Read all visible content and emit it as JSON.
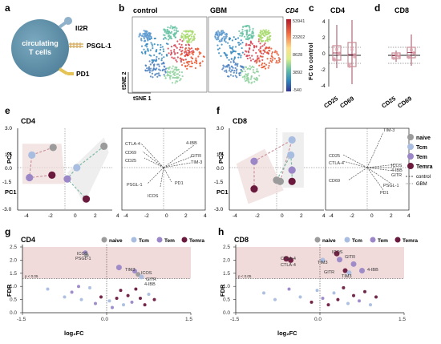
{
  "panels": {
    "a": {
      "letter": "a",
      "cell_label_1": "circulating",
      "cell_label_2": "T cells",
      "receptors": [
        "Il2R",
        "PSGL-1",
        "PD1"
      ]
    },
    "b": {
      "letter": "b",
      "left_title": "control",
      "right_title": "GBM",
      "xlabel": "tSNE 1",
      "ylabel": "tSNE 2",
      "colorbar_title": "CD4",
      "colorbar_ticks": [
        "53941",
        "23202",
        "8628",
        "3892",
        "-540"
      ]
    },
    "c": {
      "letter": "c",
      "title": "CD4",
      "ylabel": "FC to control",
      "categories": [
        "CD25",
        "CD69"
      ],
      "yticks": [
        "4",
        "2",
        "0",
        "-2",
        "-4"
      ]
    },
    "d": {
      "letter": "d",
      "title": "CD8",
      "categories": [
        "CD25",
        "CD69"
      ]
    },
    "e": {
      "letter": "e",
      "title": "CD4",
      "xlabel": "PC1",
      "ylabel": "PC2",
      "xticks": [
        "-4",
        "-2",
        "0",
        "2",
        "4"
      ],
      "yticks": [
        "3.0",
        "1.5",
        "0.0",
        "-1.5",
        "-3.0"
      ],
      "loadings": [
        "CTLA-4",
        "CD69",
        "CD25",
        "4-IBB",
        "GITR",
        "TIM-3",
        "PD1",
        "PSGL-1",
        "ICOS"
      ]
    },
    "f": {
      "letter": "f",
      "title": "CD8",
      "xlabel": "PC1",
      "ylabel": "PC2",
      "xticks": [
        "-4",
        "-2",
        "0",
        "2",
        "4"
      ],
      "yticks": [
        "3.0",
        "1.5",
        "0.0",
        "-1.5",
        "-3.0"
      ],
      "loadings": [
        "TIM-3",
        "CD25",
        "CTLA-4",
        "ICOS",
        "4-IBB",
        "GITR",
        "CD69",
        "PSGL-1",
        "PD1"
      ]
    },
    "g": {
      "letter": "g",
      "title": "CD4",
      "xlabel": "log₂FC",
      "ylabel": "FDR",
      "xticks": [
        "-1.5",
        "0.0",
        "1.5"
      ],
      "yticks": [
        "2.5",
        "2.0",
        "1.5",
        "1.0",
        "0.5",
        "0.0"
      ],
      "threshold": "p < 0.05",
      "labels": [
        "ICOS",
        "PSGL-1",
        "TIM3",
        "ICOS",
        "GITR",
        "4-IBB"
      ]
    },
    "h": {
      "letter": "h",
      "title": "CD8",
      "xlabel": "log₂FC",
      "ylabel": "FDR",
      "xticks": [
        "-1.5",
        "0.0",
        "1.5"
      ],
      "yticks": [
        "2.5",
        "2.0",
        "1.5",
        "1.0",
        "0.5",
        "0.0"
      ],
      "threshold": "p < 0.05",
      "labels": [
        "ICOS",
        "CTLA-4",
        "CTLA-4",
        "TIM3",
        "GITR",
        "4-IBB",
        "GITR",
        "TIM3"
      ]
    }
  },
  "legend": {
    "subsets": [
      "naive",
      "Tcm",
      "Tem",
      "Temra"
    ],
    "lines": [
      "control",
      "GBM"
    ]
  },
  "colors": {
    "naive": "#9b9b9b",
    "Tcm": "#a9bde0",
    "Tem": "#9b87c8",
    "Temra": "#6b1a3e",
    "cell": "#5f8fa8",
    "highlight": "#f0dada",
    "box": "#c98b95"
  },
  "chart_data": [
    {
      "type": "scatter",
      "panel": "e",
      "title": "CD4",
      "xlabel": "PC1",
      "ylabel": "PC2",
      "xlim": [
        -4,
        4
      ],
      "ylim": [
        -3,
        3
      ],
      "series": [
        {
          "name": "naive",
          "x": [
            -1.0,
            3.3
          ],
          "y": [
            1.6,
            1.7
          ]
        },
        {
          "name": "Tcm",
          "x": [
            -2.8,
            1.0
          ],
          "y": [
            1.0,
            0.0
          ]
        },
        {
          "name": "Tem",
          "x": [
            -3.0,
            0.2
          ],
          "y": [
            -0.8,
            -0.9
          ]
        },
        {
          "name": "Temra",
          "x": [
            -1.1,
            1.8
          ],
          "y": [
            -0.6,
            -2.5
          ]
        }
      ]
    },
    {
      "type": "scatter",
      "panel": "f",
      "title": "CD8",
      "xlabel": "PC1",
      "ylabel": "PC2",
      "xlim": [
        -4,
        4
      ],
      "ylim": [
        -3,
        3
      ],
      "series": [
        {
          "name": "naive",
          "x": [
            0.3,
            0.0
          ],
          "y": [
            -1.1,
            -1.0
          ]
        },
        {
          "name": "Tcm",
          "x": [
            1.3,
            1.2
          ],
          "y": [
            2.2,
            1.0
          ]
        },
        {
          "name": "Tem",
          "x": [
            -1.9,
            1.3
          ],
          "y": [
            0.5,
            -0.2
          ]
        },
        {
          "name": "Temra",
          "x": [
            -1.9,
            1.3
          ],
          "y": [
            -1.7,
            -1.1
          ]
        }
      ]
    },
    {
      "type": "scatter",
      "panel": "g",
      "title": "CD4",
      "xlabel": "log₂FC",
      "ylabel": "FDR",
      "xlim": [
        -1.5,
        1.5
      ],
      "ylim": [
        0,
        2.5
      ],
      "threshold": 1.3,
      "points": [
        {
          "x": -0.38,
          "y": 2.28,
          "c": "Tem",
          "r": 3
        },
        {
          "x": -0.36,
          "y": 2.18,
          "c": "naive",
          "r": 3
        },
        {
          "x": 0.22,
          "y": 1.72,
          "c": "Tem",
          "r": 3.5
        },
        {
          "x": 0.5,
          "y": 1.58,
          "c": "Tem",
          "r": 3
        },
        {
          "x": 0.56,
          "y": 1.46,
          "c": "naive",
          "r": 3
        },
        {
          "x": 0.62,
          "y": 1.36,
          "c": "Tcm",
          "r": 3
        },
        {
          "x": -1.05,
          "y": 0.9,
          "c": "Tcm",
          "r": 2
        },
        {
          "x": -0.75,
          "y": 0.6,
          "c": "Tcm",
          "r": 2
        },
        {
          "x": -0.62,
          "y": 0.78,
          "c": "Tem",
          "r": 2
        },
        {
          "x": -0.45,
          "y": 0.5,
          "c": "Tcm",
          "r": 2
        },
        {
          "x": -0.3,
          "y": 0.95,
          "c": "Tcm",
          "r": 2
        },
        {
          "x": -0.2,
          "y": 0.35,
          "c": "Tem",
          "r": 2
        },
        {
          "x": -0.1,
          "y": 0.6,
          "c": "Temra",
          "r": 2
        },
        {
          "x": 0.05,
          "y": 0.45,
          "c": "Tcm",
          "r": 2
        },
        {
          "x": 0.1,
          "y": 0.2,
          "c": "Tem",
          "r": 2
        },
        {
          "x": 0.18,
          "y": 0.55,
          "c": "Temra",
          "r": 2
        },
        {
          "x": 0.25,
          "y": 0.85,
          "c": "Temra",
          "r": 2
        },
        {
          "x": 0.3,
          "y": 0.3,
          "c": "Tcm",
          "r": 2
        },
        {
          "x": 0.38,
          "y": 0.65,
          "c": "Temra",
          "r": 2
        },
        {
          "x": 0.45,
          "y": 0.4,
          "c": "Tem",
          "r": 2
        },
        {
          "x": 0.52,
          "y": 0.9,
          "c": "Temra",
          "r": 2
        },
        {
          "x": 0.6,
          "y": 0.55,
          "c": "Temra",
          "r": 2
        },
        {
          "x": 0.68,
          "y": 0.3,
          "c": "Temra",
          "r": 2
        },
        {
          "x": 0.75,
          "y": 0.7,
          "c": "Tcm",
          "r": 2
        },
        {
          "x": 0.85,
          "y": 0.5,
          "c": "Temra",
          "r": 2
        },
        {
          "x": -0.5,
          "y": 1.0,
          "c": "Tem",
          "r": 2
        }
      ]
    },
    {
      "type": "scatter",
      "panel": "h",
      "title": "CD8",
      "xlabel": "log₂FC",
      "ylabel": "FDR",
      "xlim": [
        -1.5,
        1.5
      ],
      "ylim": [
        0,
        2.5
      ],
      "threshold": 1.3,
      "points": [
        {
          "x": -0.6,
          "y": 2.05,
          "c": "Temra",
          "r": 3.5
        },
        {
          "x": -0.52,
          "y": 2.0,
          "c": "Temra",
          "r": 3.5
        },
        {
          "x": 0.3,
          "y": 2.25,
          "c": "Temra",
          "r": 3.5
        },
        {
          "x": 0.35,
          "y": 2.02,
          "c": "Tem",
          "r": 3.5
        },
        {
          "x": 0.6,
          "y": 1.85,
          "c": "Tem",
          "r": 3.5
        },
        {
          "x": 0.75,
          "y": 1.6,
          "c": "Tem",
          "r": 3.5
        },
        {
          "x": 0.45,
          "y": 1.6,
          "c": "Temra",
          "r": 3
        },
        {
          "x": 0.52,
          "y": 1.52,
          "c": "Tcm",
          "r": 3
        },
        {
          "x": 0.05,
          "y": 2.0,
          "c": "Tcm",
          "r": 3
        },
        {
          "x": -1.0,
          "y": 0.75,
          "c": "Tcm",
          "r": 2
        },
        {
          "x": -0.8,
          "y": 0.5,
          "c": "Tcm",
          "r": 2
        },
        {
          "x": -0.55,
          "y": 0.9,
          "c": "Tem",
          "r": 2
        },
        {
          "x": -0.35,
          "y": 0.6,
          "c": "Tcm",
          "r": 2
        },
        {
          "x": -0.15,
          "y": 0.4,
          "c": "Temra",
          "r": 2
        },
        {
          "x": -0.05,
          "y": 0.85,
          "c": "Tcm",
          "r": 2
        },
        {
          "x": 0.05,
          "y": 0.55,
          "c": "Tem",
          "r": 2
        },
        {
          "x": 0.15,
          "y": 0.3,
          "c": "Temra",
          "r": 2
        },
        {
          "x": 0.25,
          "y": 0.75,
          "c": "Tcm",
          "r": 2
        },
        {
          "x": 0.32,
          "y": 0.5,
          "c": "Temra",
          "r": 2
        },
        {
          "x": 0.42,
          "y": 0.95,
          "c": "Temra",
          "r": 2
        },
        {
          "x": 0.5,
          "y": 0.35,
          "c": "Tcm",
          "r": 2
        },
        {
          "x": 0.6,
          "y": 0.65,
          "c": "Temra",
          "r": 2
        },
        {
          "x": 0.7,
          "y": 0.45,
          "c": "Tem",
          "r": 2
        },
        {
          "x": 0.8,
          "y": 0.8,
          "c": "Temra",
          "r": 2
        },
        {
          "x": 0.9,
          "y": 0.3,
          "c": "Tcm",
          "r": 2
        },
        {
          "x": 1.0,
          "y": 0.6,
          "c": "Temra",
          "r": 2
        }
      ]
    }
  ]
}
